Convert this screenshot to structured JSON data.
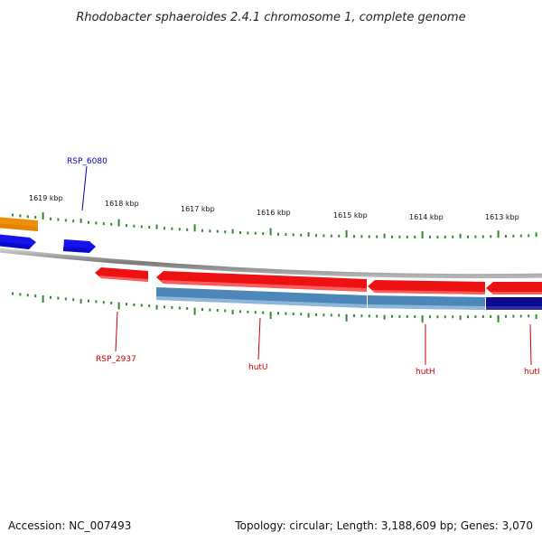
{
  "title": "Rhodobacter sphaeroides 2.4.1 chromosome 1, complete genome",
  "accession_label": "Accession: NC_007493",
  "stats_label": "Topology: circular; Length: 3,188,609 bp; Genes: 3,070",
  "colors": {
    "backbone": "#8c8c8c",
    "tick": "#2e8b2e",
    "orange_feature": "#f0900a",
    "blue_feature": "#1414ee",
    "red_feature": "#ee1111",
    "steelblue_feature": "#4d86b8",
    "navy_feature": "#0a0a8c",
    "label_blue": "#0000aa",
    "label_red": "#cc0000"
  },
  "kbp_labels": [
    "1619 kbp",
    "1618 kbp",
    "1617 kbp",
    "1616 kbp",
    "1615 kbp",
    "1614 kbp",
    "1613 kbp"
  ],
  "gene_labels": {
    "rsp_6080": "RSP_6080",
    "rsp_2937": "RSP_2937",
    "hutu": "hutU",
    "huth": "hutH",
    "huti": "hutI"
  }
}
